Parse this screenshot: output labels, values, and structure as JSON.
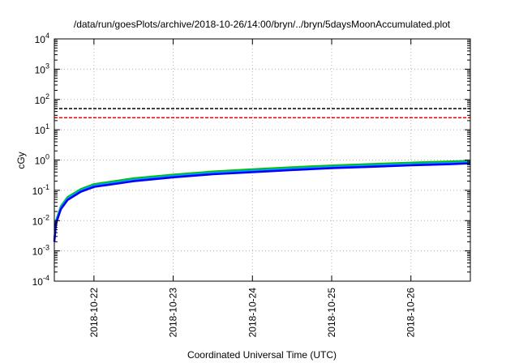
{
  "chart_data": {
    "type": "line",
    "title": "/data/run/goesPlots/archive/2018-10-26/14:00/bryn/../bryn/5daysMoonAccumulated.plot",
    "xlabel": "Coordinated Universal Time (UTC)",
    "ylabel": "cGy",
    "yscale": "log",
    "ylim": [
      0.0001,
      10000
    ],
    "xlim": [
      "2018-10-21T12:00",
      "2018-10-26T18:00"
    ],
    "grid": true,
    "x_ticks": [
      "2018-10-22",
      "2018-10-23",
      "2018-10-24",
      "2018-10-25",
      "2018-10-26"
    ],
    "y_ticks": [
      {
        "value": 0.0001,
        "base": "10",
        "exp": "-4"
      },
      {
        "value": 0.001,
        "base": "10",
        "exp": "-3"
      },
      {
        "value": 0.01,
        "base": "10",
        "exp": "-2"
      },
      {
        "value": 0.1,
        "base": "10",
        "exp": "-1"
      },
      {
        "value": 1,
        "base": "10",
        "exp": "0"
      },
      {
        "value": 10,
        "base": "10",
        "exp": "1"
      },
      {
        "value": 100,
        "base": "10",
        "exp": "2"
      },
      {
        "value": 1000,
        "base": "10",
        "exp": "3"
      },
      {
        "value": 10000,
        "base": "10",
        "exp": "4"
      }
    ],
    "thresholds": [
      {
        "value": 50,
        "color": "#000000"
      },
      {
        "value": 25,
        "color": "#ff0000"
      }
    ],
    "series": [
      {
        "color": "#00c000",
        "x": [
          "2018-10-21T12:00",
          "2018-10-21T12:30",
          "2018-10-21T14:00",
          "2018-10-21T16:00",
          "2018-10-21T20:00",
          "2018-10-22T00:00",
          "2018-10-22T12:00",
          "2018-10-23T00:00",
          "2018-10-23T12:00",
          "2018-10-24T00:00",
          "2018-10-24T12:00",
          "2018-10-25T00:00",
          "2018-10-25T12:00",
          "2018-10-26T00:00",
          "2018-10-26T12:00",
          "2018-10-26T18:00"
        ],
        "y": [
          0.0025,
          0.01,
          0.03,
          0.06,
          0.11,
          0.16,
          0.25,
          0.33,
          0.42,
          0.5,
          0.58,
          0.66,
          0.74,
          0.82,
          0.9,
          0.95
        ]
      },
      {
        "color": "#00a0ff",
        "x": [
          "2018-10-21T12:00",
          "2018-10-21T12:30",
          "2018-10-21T14:00",
          "2018-10-21T16:00",
          "2018-10-21T20:00",
          "2018-10-22T00:00",
          "2018-10-22T12:00",
          "2018-10-23T00:00",
          "2018-10-23T12:00",
          "2018-10-24T00:00",
          "2018-10-24T12:00",
          "2018-10-25T00:00",
          "2018-10-25T12:00",
          "2018-10-26T00:00",
          "2018-10-26T12:00",
          "2018-10-26T18:00"
        ],
        "y": [
          0.0023,
          0.009,
          0.027,
          0.054,
          0.1,
          0.145,
          0.225,
          0.3,
          0.38,
          0.45,
          0.52,
          0.6,
          0.67,
          0.74,
          0.81,
          0.86
        ]
      },
      {
        "color": "#0000ff",
        "x": [
          "2018-10-21T12:00",
          "2018-10-21T12:30",
          "2018-10-21T14:00",
          "2018-10-21T16:00",
          "2018-10-21T20:00",
          "2018-10-22T00:00",
          "2018-10-22T12:00",
          "2018-10-23T00:00",
          "2018-10-23T12:00",
          "2018-10-24T00:00",
          "2018-10-24T12:00",
          "2018-10-25T00:00",
          "2018-10-25T12:00",
          "2018-10-26T00:00",
          "2018-10-26T12:00",
          "2018-10-26T18:00"
        ],
        "y": [
          0.002,
          0.008,
          0.024,
          0.048,
          0.09,
          0.13,
          0.2,
          0.27,
          0.34,
          0.4,
          0.47,
          0.54,
          0.6,
          0.67,
          0.73,
          0.78
        ]
      }
    ]
  }
}
